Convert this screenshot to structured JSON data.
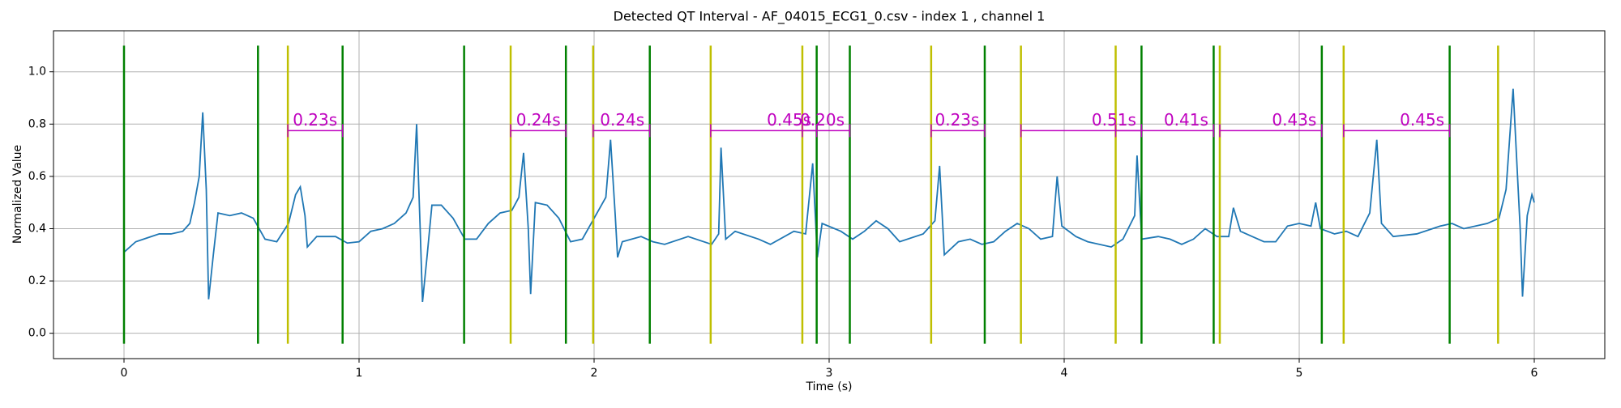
{
  "chart_data": {
    "type": "line",
    "title": "Detected QT Interval - AF_04015_ECG1_0.csv - index 1 , channel 1",
    "xlabel": "Time (s)",
    "ylabel": "Normalized Value",
    "xlim": [
      -0.3,
      6.3
    ],
    "ylim": [
      -0.097,
      1.157
    ],
    "xticks": [
      0,
      1,
      2,
      3,
      4,
      5,
      6
    ],
    "yticks": [
      {
        "value": 0,
        "label": "0.0"
      },
      0.2,
      0.4,
      0.6,
      0.8,
      {
        "value": 1,
        "label": "1.0"
      }
    ],
    "grid": true,
    "series": [
      {
        "color": "#1f77b4",
        "x": [
          0,
          0.05,
          0.1,
          0.15,
          0.2,
          0.25,
          0.28,
          0.3,
          0.32,
          0.335,
          0.35,
          0.36,
          0.38,
          0.4,
          0.45,
          0.5,
          0.55,
          0.6,
          0.65,
          0.7,
          0.73,
          0.75,
          0.77,
          0.78,
          0.82,
          0.9,
          0.95,
          1.0,
          1.05,
          1.1,
          1.15,
          1.2,
          1.23,
          1.245,
          1.26,
          1.27,
          1.29,
          1.31,
          1.35,
          1.4,
          1.45,
          1.5,
          1.55,
          1.6,
          1.65,
          1.68,
          1.7,
          1.72,
          1.73,
          1.75,
          1.8,
          1.85,
          1.9,
          1.95,
          2.0,
          2.05,
          2.07,
          2.09,
          2.1,
          2.12,
          2.2,
          2.25,
          2.3,
          2.4,
          2.5,
          2.53,
          2.54,
          2.56,
          2.6,
          2.7,
          2.75,
          2.85,
          2.9,
          2.93,
          2.95,
          2.97,
          3.05,
          3.1,
          3.15,
          3.2,
          3.25,
          3.3,
          3.4,
          3.45,
          3.47,
          3.49,
          3.55,
          3.6,
          3.65,
          3.7,
          3.75,
          3.8,
          3.85,
          3.9,
          3.95,
          3.97,
          3.99,
          4.05,
          4.1,
          4.2,
          4.25,
          4.3,
          4.31,
          4.33,
          4.4,
          4.45,
          4.5,
          4.55,
          4.6,
          4.65,
          4.7,
          4.72,
          4.75,
          4.8,
          4.85,
          4.9,
          4.95,
          5.0,
          5.05,
          5.07,
          5.09,
          5.15,
          5.2,
          5.25,
          5.3,
          5.33,
          5.35,
          5.4,
          5.5,
          5.6,
          5.65,
          5.7,
          5.8,
          5.85,
          5.88,
          5.91,
          5.94,
          5.95,
          5.97,
          5.99,
          6.0
        ],
        "values": [
          0.31,
          0.35,
          0.365,
          0.38,
          0.38,
          0.39,
          0.42,
          0.5,
          0.6,
          0.845,
          0.55,
          0.13,
          0.3,
          0.46,
          0.45,
          0.46,
          0.44,
          0.36,
          0.35,
          0.42,
          0.53,
          0.56,
          0.45,
          0.33,
          0.37,
          0.37,
          0.345,
          0.35,
          0.39,
          0.4,
          0.42,
          0.46,
          0.52,
          0.8,
          0.4,
          0.12,
          0.3,
          0.49,
          0.49,
          0.44,
          0.36,
          0.36,
          0.42,
          0.46,
          0.47,
          0.52,
          0.69,
          0.4,
          0.15,
          0.5,
          0.49,
          0.44,
          0.35,
          0.36,
          0.44,
          0.52,
          0.74,
          0.45,
          0.29,
          0.35,
          0.37,
          0.35,
          0.34,
          0.37,
          0.34,
          0.38,
          0.71,
          0.36,
          0.39,
          0.36,
          0.34,
          0.39,
          0.38,
          0.65,
          0.29,
          0.42,
          0.39,
          0.36,
          0.39,
          0.43,
          0.4,
          0.35,
          0.38,
          0.43,
          0.64,
          0.3,
          0.35,
          0.36,
          0.34,
          0.35,
          0.39,
          0.42,
          0.4,
          0.36,
          0.37,
          0.6,
          0.41,
          0.37,
          0.35,
          0.33,
          0.36,
          0.45,
          0.68,
          0.36,
          0.37,
          0.36,
          0.34,
          0.36,
          0.4,
          0.37,
          0.37,
          0.48,
          0.39,
          0.37,
          0.35,
          0.35,
          0.41,
          0.42,
          0.41,
          0.5,
          0.4,
          0.38,
          0.39,
          0.37,
          0.46,
          0.74,
          0.42,
          0.37,
          0.38,
          0.41,
          0.42,
          0.4,
          0.42,
          0.44,
          0.55,
          0.935,
          0.4,
          0.14,
          0.45,
          0.53,
          0.5
        ]
      }
    ],
    "vline_range": [
      -0.04,
      1.1
    ],
    "green_lines": {
      "color": "#008000",
      "x": [
        0,
        0.57,
        0.93,
        1.447,
        1.88,
        2.237,
        2.947,
        3.088,
        3.662,
        4.329,
        4.636,
        5.096,
        5.64
      ]
    },
    "yellow_lines": {
      "color": "#bfbf00",
      "x": [
        0.697,
        1.645,
        1.996,
        2.496,
        2.886,
        3.434,
        3.816,
        4.219,
        4.662,
        5.189,
        5.846
      ]
    },
    "intervals": {
      "color": "#bf00bf",
      "y": 0.775,
      "starts": [
        0.697,
        1.645,
        1.996,
        2.496,
        2.886,
        3.434,
        3.816,
        4.219,
        4.662,
        5.189
      ],
      "ends": [
        0.93,
        1.88,
        2.237,
        2.947,
        3.088,
        3.662,
        4.329,
        4.636,
        5.096,
        5.64
      ],
      "values": [
        0.23,
        0.24,
        0.24,
        0.45,
        0.2,
        0.23,
        0.51,
        0.41,
        0.43,
        0.45
      ],
      "value_labels": [
        "0.23s",
        "0.24s",
        "0.24s",
        "0.45s",
        "0.20s",
        "0.23s",
        "0.51s",
        "0.41s",
        "0.43s",
        "0.45s"
      ]
    }
  }
}
